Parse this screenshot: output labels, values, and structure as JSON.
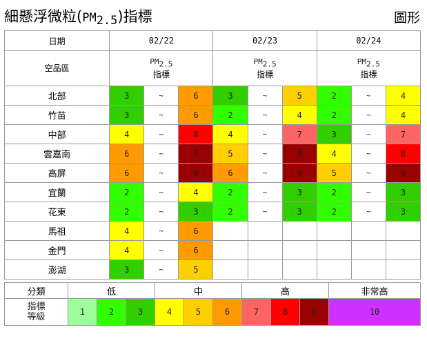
{
  "header": {
    "title_prefix": "細懸浮微粒(",
    "title_pm": "PM",
    "title_sub": "2.5",
    "title_suffix": ")指標",
    "graph_link": "圖形"
  },
  "colors": {
    "1": "#9cff9c",
    "2": "#31ff00",
    "3": "#31cf00",
    "4": "#ffff00",
    "5": "#ffcf00",
    "6": "#ff9a00",
    "7": "#ff6464",
    "8": "#ff0000",
    "9": "#990000",
    "10": "#ce30ff"
  },
  "table": {
    "date_header": "日期",
    "region_header": "空品區",
    "tilde": "~",
    "param_pm": "PM",
    "param_sub": "2.5",
    "param_label": "指標",
    "dates": [
      "02/22",
      "02/23",
      "02/24"
    ],
    "rows": [
      {
        "region": "北部",
        "values": [
          [
            3,
            6
          ],
          [
            3,
            5
          ],
          [
            2,
            4
          ]
        ]
      },
      {
        "region": "竹苗",
        "values": [
          [
            3,
            6
          ],
          [
            2,
            4
          ],
          [
            2,
            4
          ]
        ]
      },
      {
        "region": "中部",
        "values": [
          [
            4,
            8
          ],
          [
            4,
            7
          ],
          [
            3,
            7
          ]
        ]
      },
      {
        "region": "雲嘉南",
        "values": [
          [
            6,
            9
          ],
          [
            5,
            9
          ],
          [
            4,
            8
          ]
        ]
      },
      {
        "region": "高屏",
        "values": [
          [
            6,
            9
          ],
          [
            6,
            9
          ],
          [
            5,
            9
          ]
        ]
      },
      {
        "region": "宜蘭",
        "values": [
          [
            2,
            4
          ],
          [
            2,
            3
          ],
          [
            2,
            3
          ]
        ]
      },
      {
        "region": "花東",
        "values": [
          [
            2,
            3
          ],
          [
            2,
            3
          ],
          [
            2,
            3
          ]
        ]
      },
      {
        "region": "馬祖",
        "values": [
          [
            4,
            6
          ],
          null,
          null
        ]
      },
      {
        "region": "金門",
        "values": [
          [
            4,
            6
          ],
          null,
          null
        ]
      },
      {
        "region": "澎湖",
        "values": [
          [
            3,
            5
          ],
          null,
          null
        ]
      }
    ]
  },
  "legend": {
    "category_label": "分類",
    "level_label_line1": "指標",
    "level_label_line2": "等級",
    "groups": [
      {
        "name": "低",
        "levels": [
          1,
          2,
          3
        ]
      },
      {
        "name": "中",
        "levels": [
          4,
          5,
          6
        ]
      },
      {
        "name": "高",
        "levels": [
          7,
          8,
          9
        ]
      },
      {
        "name": "非常高",
        "levels": [
          10
        ]
      }
    ]
  }
}
